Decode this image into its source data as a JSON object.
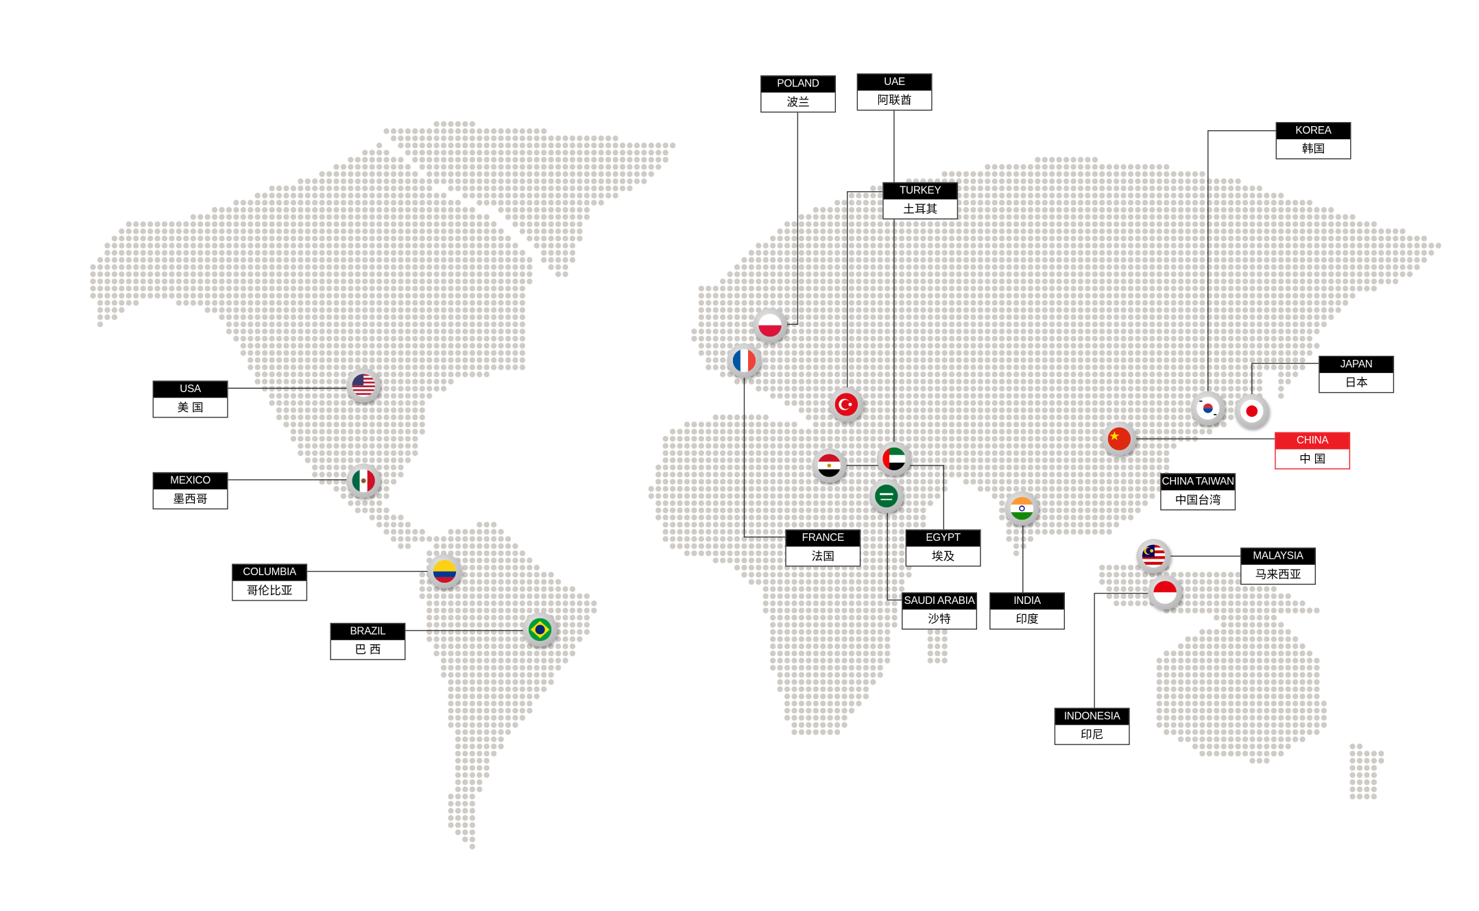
{
  "countries": [
    {
      "id": "poland",
      "en": "POLAND",
      "zh": "波兰",
      "flag": "poland-flag-icon"
    },
    {
      "id": "uae",
      "en": "UAE",
      "zh": "阿联酋",
      "flag": "uae-flag-icon"
    },
    {
      "id": "turkey",
      "en": "TURKEY",
      "zh": "土耳其",
      "flag": "turkey-flag-icon"
    },
    {
      "id": "korea",
      "en": "KOREA",
      "zh": "韩国",
      "flag": "korea-flag-icon"
    },
    {
      "id": "japan",
      "en": "JAPAN",
      "zh": "日本",
      "flag": "japan-flag-icon"
    },
    {
      "id": "china",
      "en": "CHINA",
      "zh": "中 国",
      "flag": "china-flag-icon",
      "highlight": "#ee1c24"
    },
    {
      "id": "china-taiwan",
      "en": "CHINA TAIWAN",
      "zh": "中国台湾"
    },
    {
      "id": "malaysia",
      "en": "MALAYSIA",
      "zh": "马来西亚",
      "flag": "malaysia-flag-icon"
    },
    {
      "id": "indonesia",
      "en": "INDONESIA",
      "zh": "印尼",
      "flag": "indonesia-flag-icon"
    },
    {
      "id": "india",
      "en": "INDIA",
      "zh": "印度",
      "flag": "india-flag-icon"
    },
    {
      "id": "saudi-arabia",
      "en": "SAUDI ARABIA",
      "zh": "沙特",
      "flag": "saudi-arabia-flag-icon"
    },
    {
      "id": "egypt",
      "en": "EGYPT",
      "zh": "埃及",
      "flag": "egypt-flag-icon"
    },
    {
      "id": "france",
      "en": "FRANCE",
      "zh": "法国",
      "flag": "france-flag-icon"
    },
    {
      "id": "usa",
      "en": "USA",
      "zh": "美 国",
      "flag": "usa-flag-icon"
    },
    {
      "id": "mexico",
      "en": "MEXICO",
      "zh": "墨西哥",
      "flag": "mexico-flag-icon"
    },
    {
      "id": "columbia",
      "en": "COLUMBIA",
      "zh": "哥伦比亚",
      "flag": "colombia-flag-icon"
    },
    {
      "id": "brazil",
      "en": "BRAZIL",
      "zh": "巴 西",
      "flag": "brazil-flag-icon"
    }
  ],
  "colors": {
    "dot": "#cfcbc6",
    "label_bg": "#000000",
    "highlight": "#ee1c24",
    "line": "#333333"
  }
}
